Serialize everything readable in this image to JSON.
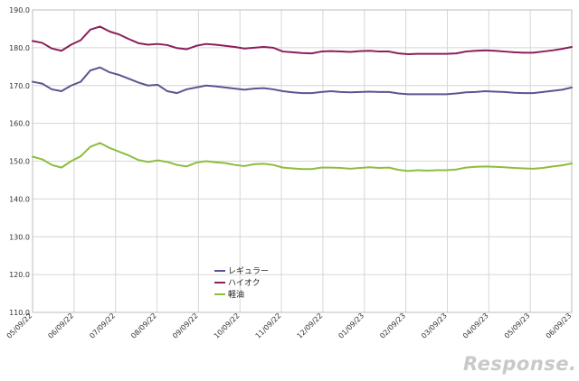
{
  "chart_data": {
    "type": "line",
    "ylim": [
      110,
      190
    ],
    "y_ticks": [
      "110.0",
      "120.0",
      "130.0",
      "140.0",
      "150.0",
      "160.0",
      "170.0",
      "180.0",
      "190.0"
    ],
    "x_tick_labels": [
      "05/09/22",
      "06/09/22",
      "07/09/22",
      "08/09/22",
      "09/09/22",
      "10/09/22",
      "11/09/22",
      "12/09/22",
      "01/09/23",
      "02/09/23",
      "03/09/23",
      "04/09/23",
      "05/09/23",
      "06/09/23"
    ],
    "grid": true,
    "legend_position": "center-bottom",
    "series": [
      {
        "name": "レギュラー",
        "color": "#5b5591",
        "values": [
          171.0,
          170.5,
          169.0,
          168.5,
          170.0,
          171.0,
          174.0,
          174.8,
          173.5,
          172.8,
          171.8,
          170.8,
          170.0,
          170.2,
          168.5,
          168.0,
          169.0,
          169.5,
          170.0,
          169.8,
          169.5,
          169.2,
          168.9,
          169.2,
          169.3,
          169.0,
          168.5,
          168.2,
          168.0,
          168.0,
          168.3,
          168.5,
          168.3,
          168.2,
          168.3,
          168.4,
          168.3,
          168.3,
          167.9,
          167.7,
          167.7,
          167.7,
          167.7,
          167.7,
          167.9,
          168.2,
          168.3,
          168.5,
          168.4,
          168.3,
          168.1,
          168.0,
          168.0,
          168.3,
          168.6,
          168.9,
          169.5
        ]
      },
      {
        "name": "ハイオク",
        "color": "#8b1f5c",
        "values": [
          181.8,
          181.3,
          179.8,
          179.2,
          180.8,
          182.0,
          184.8,
          185.6,
          184.3,
          183.5,
          182.3,
          181.2,
          180.8,
          181.0,
          180.7,
          179.9,
          179.6,
          180.5,
          181.0,
          180.8,
          180.5,
          180.2,
          179.8,
          180.0,
          180.2,
          180.0,
          179.0,
          178.8,
          178.6,
          178.5,
          179.0,
          179.1,
          179.0,
          178.9,
          179.1,
          179.2,
          179.0,
          179.0,
          178.5,
          178.3,
          178.4,
          178.4,
          178.4,
          178.4,
          178.5,
          179.0,
          179.2,
          179.3,
          179.2,
          179.0,
          178.8,
          178.7,
          178.7,
          179.0,
          179.3,
          179.7,
          180.2
        ]
      },
      {
        "name": "軽油",
        "color": "#8cbd3f",
        "values": [
          151.2,
          150.5,
          149.0,
          148.3,
          150.0,
          151.3,
          153.8,
          154.8,
          153.5,
          152.5,
          151.5,
          150.3,
          149.8,
          150.2,
          149.8,
          149.0,
          148.6,
          149.6,
          150.0,
          149.7,
          149.5,
          149.0,
          148.7,
          149.2,
          149.3,
          149.0,
          148.3,
          148.1,
          147.9,
          147.9,
          148.3,
          148.3,
          148.2,
          148.0,
          148.2,
          148.4,
          148.2,
          148.3,
          147.7,
          147.4,
          147.6,
          147.5,
          147.6,
          147.6,
          147.8,
          148.3,
          148.5,
          148.6,
          148.5,
          148.4,
          148.2,
          148.1,
          148.0,
          148.2,
          148.6,
          148.9,
          149.4
        ]
      }
    ]
  },
  "watermark": "Response."
}
